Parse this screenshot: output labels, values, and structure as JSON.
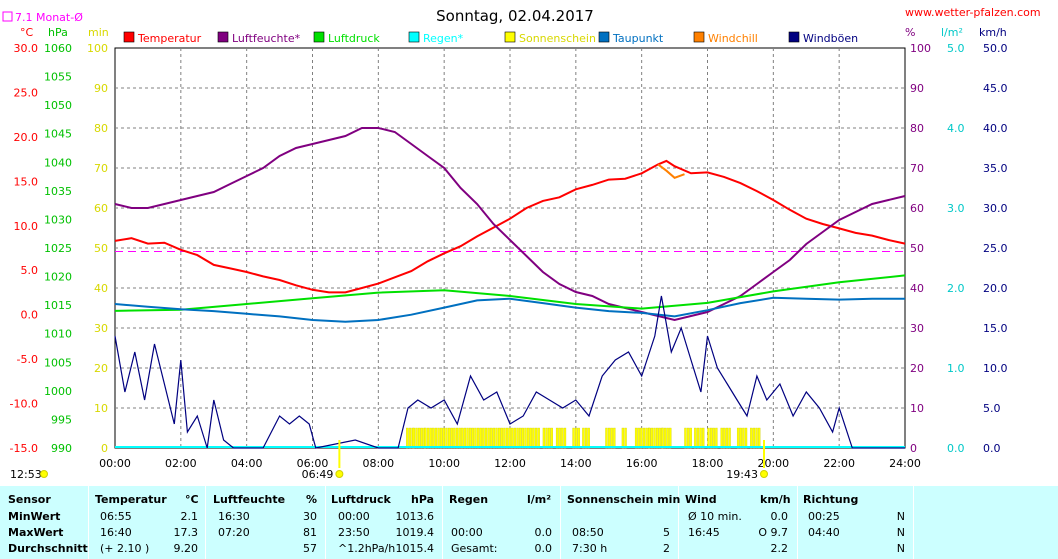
{
  "title": "Sonntag, 02.04.2017",
  "source": "www.wetter-pfalzen.com",
  "monthly_avg": "7.1 Monat-Ø",
  "units": {
    "temp": "°C",
    "pressure": "hPa",
    "sun": "min",
    "humidity": "%",
    "rain": "l/m²",
    "wind": "km/h"
  },
  "legend": [
    {
      "name": "Temperatur",
      "color": "#ff0000"
    },
    {
      "name": "Luftfeuchte*",
      "color": "#800080"
    },
    {
      "name": "Luftdruck",
      "color": "#00e000"
    },
    {
      "name": "Regen*",
      "color": "#00ffff"
    },
    {
      "name": "Sonnenschein",
      "color": "#ffff00"
    },
    {
      "name": "Taupunkt",
      "color": "#0070c0"
    },
    {
      "name": "Windchill",
      "color": "#ff8000"
    },
    {
      "name": "Windböen",
      "color": "#000080"
    }
  ],
  "axes": {
    "temp_ticks": [
      "30.0",
      "25.0",
      "20.0",
      "15.0",
      "10.0",
      "5.0",
      "0.0",
      "-5.0",
      "-10.0",
      "-15.0"
    ],
    "pressure_ticks": [
      "1060",
      "1055",
      "1050",
      "1045",
      "1040",
      "1035",
      "1030",
      "1025",
      "1020",
      "1015",
      "1010",
      "1005",
      "1000",
      "995",
      "990"
    ],
    "sun_ticks": [
      "100",
      "90",
      "80",
      "70",
      "60",
      "50",
      "40",
      "30",
      "20",
      "10",
      "0"
    ],
    "hum_ticks": [
      "100",
      "90",
      "80",
      "70",
      "60",
      "50",
      "40",
      "30",
      "20",
      "10",
      "0"
    ],
    "rain_ticks": [
      "5.0",
      "4.0",
      "3.0",
      "2.0",
      "1.0",
      "0.0"
    ],
    "wind_ticks": [
      "50.0",
      "45.0",
      "40.0",
      "35.0",
      "30.0",
      "25.0",
      "20.0",
      "15.0",
      "10.0",
      "5.0",
      "0.0"
    ],
    "x_ticks": [
      "00:00",
      "02:00",
      "04:00",
      "06:00",
      "08:00",
      "10:00",
      "12:00",
      "14:00",
      "16:00",
      "18:00",
      "20:00",
      "22:00",
      "24:00"
    ],
    "sunrise": "06:49",
    "sunset": "19:43",
    "moonrise": "12:53"
  },
  "chart_data": {
    "type": "line",
    "x_unit": "hour",
    "series": [
      {
        "name": "Temperatur",
        "axis": "temp",
        "color": "#ff0000",
        "points": [
          [
            0,
            8.3
          ],
          [
            0.5,
            8.6
          ],
          [
            1,
            8.0
          ],
          [
            1.5,
            8.1
          ],
          [
            2,
            7.3
          ],
          [
            2.5,
            6.7
          ],
          [
            3,
            5.6
          ],
          [
            3.5,
            5.2
          ],
          [
            4,
            4.8
          ],
          [
            4.5,
            4.3
          ],
          [
            5,
            3.9
          ],
          [
            5.5,
            3.3
          ],
          [
            6,
            2.8
          ],
          [
            6.5,
            2.5
          ],
          [
            7,
            2.5
          ],
          [
            7.5,
            3.0
          ],
          [
            8,
            3.5
          ],
          [
            8.5,
            4.2
          ],
          [
            9,
            4.9
          ],
          [
            9.5,
            6.0
          ],
          [
            10,
            6.9
          ],
          [
            10.5,
            7.7
          ],
          [
            11,
            8.8
          ],
          [
            11.5,
            9.8
          ],
          [
            12,
            10.8
          ],
          [
            12.5,
            12.0
          ],
          [
            13,
            12.8
          ],
          [
            13.5,
            13.2
          ],
          [
            14,
            14.1
          ],
          [
            14.5,
            14.6
          ],
          [
            15,
            15.2
          ],
          [
            15.5,
            15.3
          ],
          [
            16,
            15.9
          ],
          [
            16.5,
            16.9
          ],
          [
            16.75,
            17.3
          ],
          [
            17,
            16.7
          ],
          [
            17.5,
            15.9
          ],
          [
            18,
            16.0
          ],
          [
            18.5,
            15.5
          ],
          [
            19,
            14.8
          ],
          [
            19.5,
            13.9
          ],
          [
            20,
            12.9
          ],
          [
            20.5,
            11.8
          ],
          [
            21,
            10.8
          ],
          [
            21.5,
            10.2
          ],
          [
            22,
            9.7
          ],
          [
            22.5,
            9.2
          ],
          [
            23,
            8.9
          ],
          [
            23.5,
            8.4
          ],
          [
            24,
            8.0
          ]
        ]
      },
      {
        "name": "Windchill",
        "axis": "temp",
        "color": "#ff8000",
        "points": [
          [
            16.5,
            16.9
          ],
          [
            16.75,
            16.2
          ],
          [
            17,
            15.4
          ],
          [
            17.3,
            15.8
          ]
        ]
      },
      {
        "name": "Luftfeuchte*",
        "axis": "hum",
        "color": "#800080",
        "points": [
          [
            0,
            61
          ],
          [
            0.5,
            60
          ],
          [
            1,
            60
          ],
          [
            1.5,
            61
          ],
          [
            2,
            62
          ],
          [
            2.5,
            63
          ],
          [
            3,
            64
          ],
          [
            3.5,
            66
          ],
          [
            4,
            68
          ],
          [
            4.5,
            70
          ],
          [
            5,
            73
          ],
          [
            5.5,
            75
          ],
          [
            6,
            76
          ],
          [
            6.5,
            77
          ],
          [
            7,
            78
          ],
          [
            7.5,
            80
          ],
          [
            8,
            80
          ],
          [
            8.5,
            79
          ],
          [
            9,
            76
          ],
          [
            9.5,
            73
          ],
          [
            10,
            70
          ],
          [
            10.5,
            65
          ],
          [
            11,
            61
          ],
          [
            11.5,
            56
          ],
          [
            12,
            52
          ],
          [
            12.5,
            48
          ],
          [
            13,
            44
          ],
          [
            13.5,
            41
          ],
          [
            14,
            39
          ],
          [
            14.5,
            38
          ],
          [
            15,
            36
          ],
          [
            15.5,
            35
          ],
          [
            16,
            34
          ],
          [
            16.5,
            33
          ],
          [
            17,
            32
          ],
          [
            17.5,
            33
          ],
          [
            18,
            34
          ],
          [
            18.5,
            36
          ],
          [
            19,
            38
          ],
          [
            19.5,
            41
          ],
          [
            20,
            44
          ],
          [
            20.5,
            47
          ],
          [
            21,
            51
          ],
          [
            21.5,
            54
          ],
          [
            22,
            57
          ],
          [
            22.5,
            59
          ],
          [
            23,
            61
          ],
          [
            23.5,
            62
          ],
          [
            24,
            63
          ]
        ]
      },
      {
        "name": "Luftdruck",
        "axis": "pressure",
        "color": "#00e000",
        "points": [
          [
            0,
            1014
          ],
          [
            2,
            1014.2
          ],
          [
            4,
            1015.2
          ],
          [
            6,
            1016.2
          ],
          [
            8,
            1017.2
          ],
          [
            10,
            1017.6
          ],
          [
            12,
            1016.6
          ],
          [
            14,
            1015.2
          ],
          [
            16,
            1014.4
          ],
          [
            18,
            1015.4
          ],
          [
            20,
            1017.4
          ],
          [
            22,
            1019.0
          ],
          [
            24,
            1020.2
          ]
        ]
      },
      {
        "name": "Taupunkt",
        "axis": "temp",
        "color": "#0070c0",
        "points": [
          [
            0,
            1.2
          ],
          [
            1,
            0.9
          ],
          [
            2,
            0.6
          ],
          [
            3,
            0.4
          ],
          [
            4,
            0.1
          ],
          [
            5,
            -0.2
          ],
          [
            6,
            -0.6
          ],
          [
            7,
            -0.8
          ],
          [
            8,
            -0.6
          ],
          [
            9,
            0.0
          ],
          [
            10,
            0.8
          ],
          [
            11,
            1.6
          ],
          [
            12,
            1.8
          ],
          [
            13,
            1.3
          ],
          [
            14,
            0.8
          ],
          [
            15,
            0.4
          ],
          [
            16,
            0.2
          ],
          [
            17,
            -0.2
          ],
          [
            18,
            0.5
          ],
          [
            19,
            1.3
          ],
          [
            20,
            1.9
          ],
          [
            21,
            1.8
          ],
          [
            22,
            1.7
          ],
          [
            23,
            1.8
          ],
          [
            24,
            1.8
          ]
        ]
      },
      {
        "name": "Windböen",
        "axis": "wind",
        "color": "#000080",
        "points": [
          [
            0,
            14
          ],
          [
            0.3,
            7
          ],
          [
            0.6,
            12
          ],
          [
            0.9,
            6
          ],
          [
            1.2,
            13
          ],
          [
            1.5,
            8
          ],
          [
            1.8,
            3
          ],
          [
            2,
            11
          ],
          [
            2.2,
            2
          ],
          [
            2.5,
            4
          ],
          [
            2.8,
            0
          ],
          [
            3,
            6
          ],
          [
            3.3,
            1
          ],
          [
            3.6,
            0
          ],
          [
            4.5,
            0
          ],
          [
            5,
            4
          ],
          [
            5.3,
            3
          ],
          [
            5.6,
            4
          ],
          [
            5.9,
            3
          ],
          [
            6.1,
            0
          ],
          [
            7.3,
            1
          ],
          [
            8,
            0
          ],
          [
            8.6,
            0
          ],
          [
            8.9,
            5
          ],
          [
            9.2,
            6
          ],
          [
            9.6,
            5
          ],
          [
            10,
            6
          ],
          [
            10.4,
            3
          ],
          [
            10.8,
            9
          ],
          [
            11.2,
            6
          ],
          [
            11.6,
            7
          ],
          [
            12,
            3
          ],
          [
            12.4,
            4
          ],
          [
            12.8,
            7
          ],
          [
            13.2,
            6
          ],
          [
            13.6,
            5
          ],
          [
            14,
            6
          ],
          [
            14.4,
            4
          ],
          [
            14.8,
            9
          ],
          [
            15.2,
            11
          ],
          [
            15.6,
            12
          ],
          [
            16,
            9
          ],
          [
            16.4,
            14
          ],
          [
            16.6,
            19
          ],
          [
            16.9,
            12
          ],
          [
            17.2,
            15
          ],
          [
            17.5,
            11
          ],
          [
            17.8,
            7
          ],
          [
            18,
            14
          ],
          [
            18.3,
            10
          ],
          [
            18.6,
            8
          ],
          [
            18.9,
            6
          ],
          [
            19.2,
            4
          ],
          [
            19.5,
            9
          ],
          [
            19.8,
            6
          ],
          [
            20.2,
            8
          ],
          [
            20.6,
            4
          ],
          [
            21,
            7
          ],
          [
            21.4,
            5
          ],
          [
            21.8,
            2
          ],
          [
            22,
            5
          ],
          [
            22.4,
            0
          ],
          [
            24,
            0
          ]
        ]
      }
    ],
    "sunshine_hours": [
      [
        8.85,
        9.05
      ],
      [
        9.05,
        9.4
      ],
      [
        9.4,
        9.8
      ],
      [
        9.8,
        10.2
      ],
      [
        10.2,
        10.6
      ],
      [
        10.6,
        11.0
      ],
      [
        11.0,
        11.4
      ],
      [
        11.4,
        11.8
      ],
      [
        11.8,
        12.2
      ],
      [
        12.2,
        12.6
      ],
      [
        12.6,
        12.9
      ],
      [
        13.0,
        13.3
      ],
      [
        13.4,
        13.7
      ],
      [
        13.9,
        14.1
      ],
      [
        14.2,
        14.4
      ],
      [
        14.9,
        15.2
      ],
      [
        15.4,
        15.5
      ],
      [
        15.8,
        16.2
      ],
      [
        16.2,
        16.6
      ],
      [
        16.6,
        16.9
      ],
      [
        17.3,
        17.5
      ],
      [
        17.6,
        17.9
      ],
      [
        18.0,
        18.3
      ],
      [
        18.4,
        18.7
      ],
      [
        18.9,
        19.2
      ],
      [
        19.3,
        19.6
      ]
    ],
    "sunshine_level": 5,
    "monthly_avg_temp": 7.1
  },
  "stats": {
    "headers": {
      "sensor": "Sensor",
      "temp": "Temperatur",
      "temp_u": "°C",
      "hum": "Luftfeuchte",
      "hum_u": "%",
      "press": "Luftdruck",
      "press_u": "hPa",
      "rain": "Regen",
      "rain_u": "l/m²",
      "sun": "Sonnenschein min",
      "wind": "Wind",
      "wind_u": "km/h",
      "dir": "Richtung"
    },
    "rows": [
      {
        "label": "MinWert",
        "temp_t": "06:55",
        "temp_v": "2.1",
        "hum_t": "16:30",
        "hum_v": "30",
        "press_t": "00:00",
        "press_v": "1013.6",
        "rain_t": "",
        "rain_v": "",
        "sun_t": "",
        "sun_v": "",
        "wind_t": "Ø 10 min.",
        "wind_v": "0.0",
        "dir_t": "00:25",
        "dir_v": "N"
      },
      {
        "label": "MaxWert",
        "temp_t": "16:40",
        "temp_v": "17.3",
        "hum_t": "07:20",
        "hum_v": "81",
        "press_t": "23:50",
        "press_v": "1019.4",
        "rain_t": "00:00",
        "rain_v": "0.0",
        "sun_t": "08:50",
        "sun_v": "5",
        "wind_t": "16:45",
        "wind_v": "O 9.7",
        "dir_t": "04:40",
        "dir_v": "N"
      },
      {
        "label": "Durchschnitt",
        "temp_t": "(+ 2.10 )",
        "temp_v": "9.20",
        "hum_t": "",
        "hum_v": "57",
        "press_t": "^1.2hPa/h",
        "press_v": "1015.4",
        "rain_t": "Gesamt:",
        "rain_v": "0.0",
        "sun_t": "7:30 h",
        "sun_v": "2",
        "wind_t": "",
        "wind_v": "2.2",
        "dir_t": "",
        "dir_v": "N"
      }
    ]
  }
}
